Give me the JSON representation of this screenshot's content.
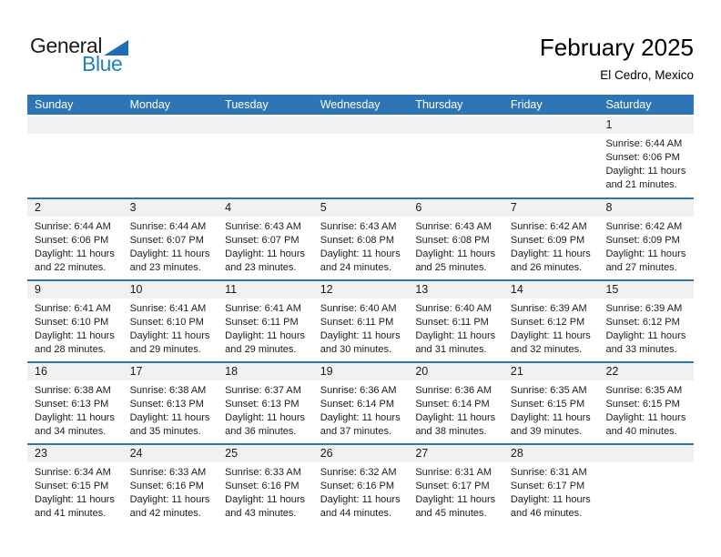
{
  "logo": {
    "general": "General",
    "blue": "Blue",
    "triangle_icon": "flag-triangle-icon"
  },
  "header": {
    "title": "February 2025",
    "location": "El Cedro, Mexico"
  },
  "colors": {
    "header_blue": "#2E75B6",
    "week_divider_blue": "#2E75B6",
    "day_band_gray": "#F1F1F1",
    "logo_triangle_blue": "#1C6FB4",
    "logo_blue_text": "#1E83C4",
    "weekday_text": "#FFFFFF"
  },
  "calendar": {
    "weekdays": [
      "Sunday",
      "Monday",
      "Tuesday",
      "Wednesday",
      "Thursday",
      "Friday",
      "Saturday"
    ],
    "weeks": [
      [
        {},
        {},
        {},
        {},
        {},
        {},
        {
          "day": "1",
          "sunrise": "Sunrise: 6:44 AM",
          "sunset": "Sunset: 6:06 PM",
          "daylight1": "Daylight: 11 hours",
          "daylight2": "and 21 minutes."
        }
      ],
      [
        {
          "day": "2",
          "sunrise": "Sunrise: 6:44 AM",
          "sunset": "Sunset: 6:06 PM",
          "daylight1": "Daylight: 11 hours",
          "daylight2": "and 22 minutes."
        },
        {
          "day": "3",
          "sunrise": "Sunrise: 6:44 AM",
          "sunset": "Sunset: 6:07 PM",
          "daylight1": "Daylight: 11 hours",
          "daylight2": "and 23 minutes."
        },
        {
          "day": "4",
          "sunrise": "Sunrise: 6:43 AM",
          "sunset": "Sunset: 6:07 PM",
          "daylight1": "Daylight: 11 hours",
          "daylight2": "and 23 minutes."
        },
        {
          "day": "5",
          "sunrise": "Sunrise: 6:43 AM",
          "sunset": "Sunset: 6:08 PM",
          "daylight1": "Daylight: 11 hours",
          "daylight2": "and 24 minutes."
        },
        {
          "day": "6",
          "sunrise": "Sunrise: 6:43 AM",
          "sunset": "Sunset: 6:08 PM",
          "daylight1": "Daylight: 11 hours",
          "daylight2": "and 25 minutes."
        },
        {
          "day": "7",
          "sunrise": "Sunrise: 6:42 AM",
          "sunset": "Sunset: 6:09 PM",
          "daylight1": "Daylight: 11 hours",
          "daylight2": "and 26 minutes."
        },
        {
          "day": "8",
          "sunrise": "Sunrise: 6:42 AM",
          "sunset": "Sunset: 6:09 PM",
          "daylight1": "Daylight: 11 hours",
          "daylight2": "and 27 minutes."
        }
      ],
      [
        {
          "day": "9",
          "sunrise": "Sunrise: 6:41 AM",
          "sunset": "Sunset: 6:10 PM",
          "daylight1": "Daylight: 11 hours",
          "daylight2": "and 28 minutes."
        },
        {
          "day": "10",
          "sunrise": "Sunrise: 6:41 AM",
          "sunset": "Sunset: 6:10 PM",
          "daylight1": "Daylight: 11 hours",
          "daylight2": "and 29 minutes."
        },
        {
          "day": "11",
          "sunrise": "Sunrise: 6:41 AM",
          "sunset": "Sunset: 6:11 PM",
          "daylight1": "Daylight: 11 hours",
          "daylight2": "and 29 minutes."
        },
        {
          "day": "12",
          "sunrise": "Sunrise: 6:40 AM",
          "sunset": "Sunset: 6:11 PM",
          "daylight1": "Daylight: 11 hours",
          "daylight2": "and 30 minutes."
        },
        {
          "day": "13",
          "sunrise": "Sunrise: 6:40 AM",
          "sunset": "Sunset: 6:11 PM",
          "daylight1": "Daylight: 11 hours",
          "daylight2": "and 31 minutes."
        },
        {
          "day": "14",
          "sunrise": "Sunrise: 6:39 AM",
          "sunset": "Sunset: 6:12 PM",
          "daylight1": "Daylight: 11 hours",
          "daylight2": "and 32 minutes."
        },
        {
          "day": "15",
          "sunrise": "Sunrise: 6:39 AM",
          "sunset": "Sunset: 6:12 PM",
          "daylight1": "Daylight: 11 hours",
          "daylight2": "and 33 minutes."
        }
      ],
      [
        {
          "day": "16",
          "sunrise": "Sunrise: 6:38 AM",
          "sunset": "Sunset: 6:13 PM",
          "daylight1": "Daylight: 11 hours",
          "daylight2": "and 34 minutes."
        },
        {
          "day": "17",
          "sunrise": "Sunrise: 6:38 AM",
          "sunset": "Sunset: 6:13 PM",
          "daylight1": "Daylight: 11 hours",
          "daylight2": "and 35 minutes."
        },
        {
          "day": "18",
          "sunrise": "Sunrise: 6:37 AM",
          "sunset": "Sunset: 6:13 PM",
          "daylight1": "Daylight: 11 hours",
          "daylight2": "and 36 minutes."
        },
        {
          "day": "19",
          "sunrise": "Sunrise: 6:36 AM",
          "sunset": "Sunset: 6:14 PM",
          "daylight1": "Daylight: 11 hours",
          "daylight2": "and 37 minutes."
        },
        {
          "day": "20",
          "sunrise": "Sunrise: 6:36 AM",
          "sunset": "Sunset: 6:14 PM",
          "daylight1": "Daylight: 11 hours",
          "daylight2": "and 38 minutes."
        },
        {
          "day": "21",
          "sunrise": "Sunrise: 6:35 AM",
          "sunset": "Sunset: 6:15 PM",
          "daylight1": "Daylight: 11 hours",
          "daylight2": "and 39 minutes."
        },
        {
          "day": "22",
          "sunrise": "Sunrise: 6:35 AM",
          "sunset": "Sunset: 6:15 PM",
          "daylight1": "Daylight: 11 hours",
          "daylight2": "and 40 minutes."
        }
      ],
      [
        {
          "day": "23",
          "sunrise": "Sunrise: 6:34 AM",
          "sunset": "Sunset: 6:15 PM",
          "daylight1": "Daylight: 11 hours",
          "daylight2": "and 41 minutes."
        },
        {
          "day": "24",
          "sunrise": "Sunrise: 6:33 AM",
          "sunset": "Sunset: 6:16 PM",
          "daylight1": "Daylight: 11 hours",
          "daylight2": "and 42 minutes."
        },
        {
          "day": "25",
          "sunrise": "Sunrise: 6:33 AM",
          "sunset": "Sunset: 6:16 PM",
          "daylight1": "Daylight: 11 hours",
          "daylight2": "and 43 minutes."
        },
        {
          "day": "26",
          "sunrise": "Sunrise: 6:32 AM",
          "sunset": "Sunset: 6:16 PM",
          "daylight1": "Daylight: 11 hours",
          "daylight2": "and 44 minutes."
        },
        {
          "day": "27",
          "sunrise": "Sunrise: 6:31 AM",
          "sunset": "Sunset: 6:17 PM",
          "daylight1": "Daylight: 11 hours",
          "daylight2": "and 45 minutes."
        },
        {
          "day": "28",
          "sunrise": "Sunrise: 6:31 AM",
          "sunset": "Sunset: 6:17 PM",
          "daylight1": "Daylight: 11 hours",
          "daylight2": "and 46 minutes."
        },
        {}
      ]
    ]
  }
}
